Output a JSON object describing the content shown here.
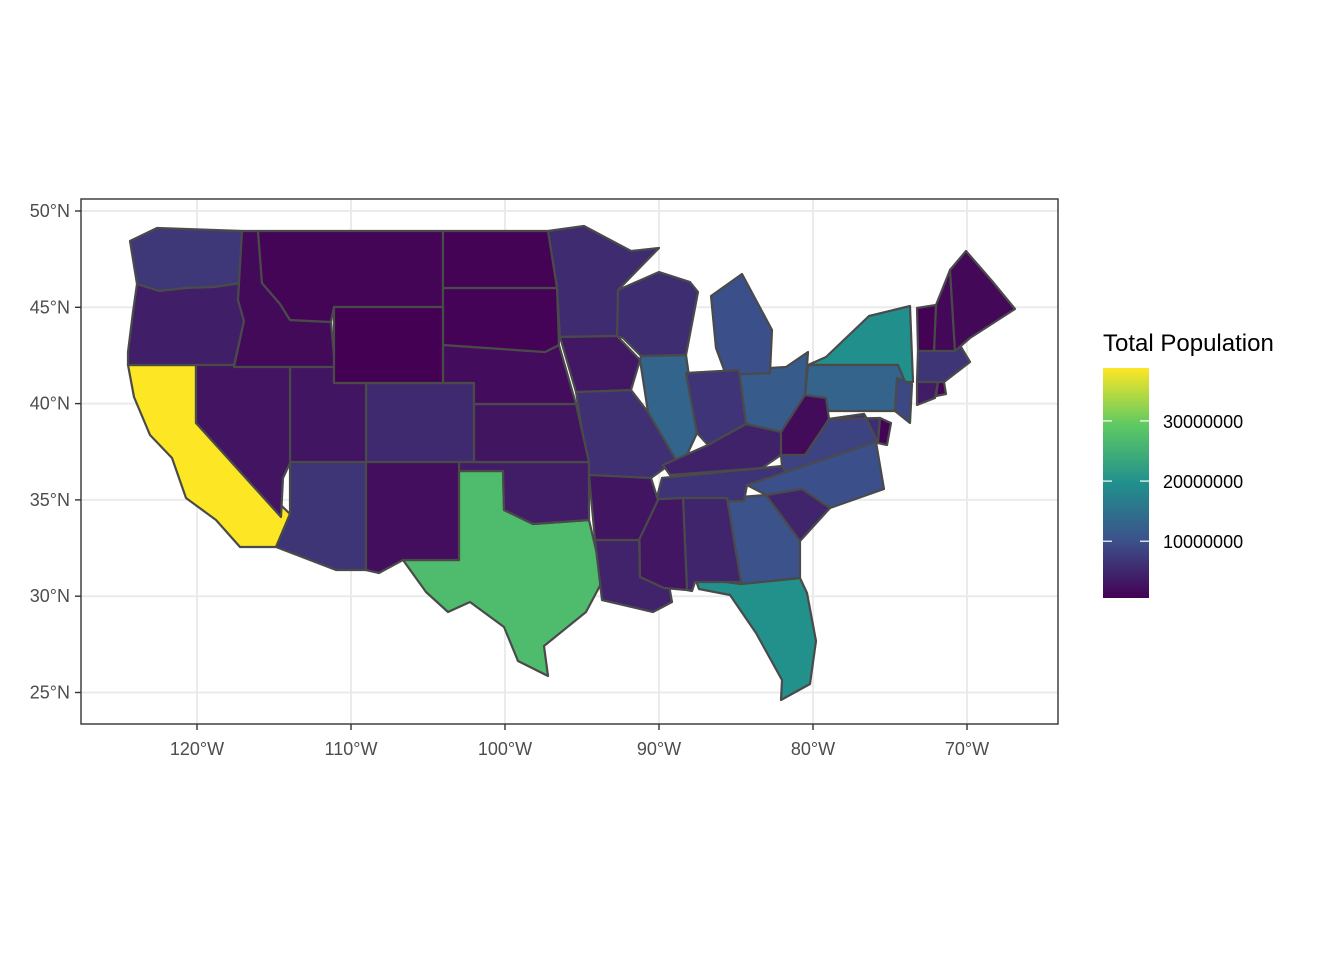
{
  "colors": {
    "panel_border": "#333333",
    "grid": "#ebebeb",
    "state_outline": "#4a4a4a",
    "viridis": [
      "#440154",
      "#3b528b",
      "#21908d",
      "#5dc963",
      "#fde725"
    ]
  },
  "axes": {
    "x_ticks": [
      "120°W",
      "110°W",
      "100°W",
      "90°W",
      "80°W",
      "70°W"
    ],
    "y_ticks": [
      "50°N",
      "45°N",
      "40°N",
      "35°N",
      "30°N",
      "25°N"
    ]
  },
  "legend": {
    "title": "Total Population",
    "labels": [
      "30000000",
      "20000000",
      "10000000"
    ]
  },
  "chart_data": {
    "type": "choropleth",
    "x_ticks_lon": [
      -120,
      -110,
      -100,
      -90,
      -80,
      -70
    ],
    "y_ticks_lat": [
      50,
      45,
      40,
      35,
      30,
      25
    ],
    "xlim": [
      -127.6,
      -65.3
    ],
    "ylim": [
      23.4,
      50.4
    ],
    "fill_scale": {
      "min": 560000,
      "max": 38800000,
      "palette": "viridis"
    },
    "legend_breaks": [
      30000000,
      20000000,
      10000000
    ],
    "states": [
      {
        "name": "California",
        "value": 38800000
      },
      {
        "name": "Texas",
        "value": 27000000
      },
      {
        "name": "Florida",
        "value": 19900000
      },
      {
        "name": "New York",
        "value": 19700000
      },
      {
        "name": "Illinois",
        "value": 12900000
      },
      {
        "name": "Pennsylvania",
        "value": 12800000
      },
      {
        "name": "Ohio",
        "value": 11600000
      },
      {
        "name": "Georgia",
        "value": 10100000
      },
      {
        "name": "North Carolina",
        "value": 9900000
      },
      {
        "name": "Michigan",
        "value": 9900000
      },
      {
        "name": "New Jersey",
        "value": 8900000
      },
      {
        "name": "Virginia",
        "value": 8300000
      },
      {
        "name": "Washington",
        "value": 7000000
      },
      {
        "name": "Massachusetts",
        "value": 6700000
      },
      {
        "name": "Arizona",
        "value": 6700000
      },
      {
        "name": "Indiana",
        "value": 6600000
      },
      {
        "name": "Tennessee",
        "value": 6500000
      },
      {
        "name": "Missouri",
        "value": 6100000
      },
      {
        "name": "Maryland",
        "value": 5900000
      },
      {
        "name": "Wisconsin",
        "value": 5800000
      },
      {
        "name": "Minnesota",
        "value": 5500000
      },
      {
        "name": "Colorado",
        "value": 5400000
      },
      {
        "name": "Alabama",
        "value": 4800000
      },
      {
        "name": "South Carolina",
        "value": 4800000
      },
      {
        "name": "Louisiana",
        "value": 4600000
      },
      {
        "name": "Kentucky",
        "value": 4400000
      },
      {
        "name": "Oregon",
        "value": 3970000
      },
      {
        "name": "Oklahoma",
        "value": 3880000
      },
      {
        "name": "Connecticut",
        "value": 3600000
      },
      {
        "name": "Iowa",
        "value": 3100000
      },
      {
        "name": "Mississippi",
        "value": 3000000
      },
      {
        "name": "Arkansas",
        "value": 2970000
      },
      {
        "name": "Utah",
        "value": 2940000
      },
      {
        "name": "Kansas",
        "value": 2900000
      },
      {
        "name": "Nevada",
        "value": 2840000
      },
      {
        "name": "New Mexico",
        "value": 2090000
      },
      {
        "name": "Nebraska",
        "value": 1880000
      },
      {
        "name": "West Virginia",
        "value": 1850000
      },
      {
        "name": "Idaho",
        "value": 1630000
      },
      {
        "name": "New Hampshire",
        "value": 1330000
      },
      {
        "name": "Maine",
        "value": 1330000
      },
      {
        "name": "Rhode Island",
        "value": 1055000
      },
      {
        "name": "Montana",
        "value": 1020000
      },
      {
        "name": "Delaware",
        "value": 935000
      },
      {
        "name": "South Dakota",
        "value": 850000
      },
      {
        "name": "North Dakota",
        "value": 740000
      },
      {
        "name": "Vermont",
        "value": 627000
      },
      {
        "name": "Wyoming",
        "value": 584000
      }
    ]
  }
}
